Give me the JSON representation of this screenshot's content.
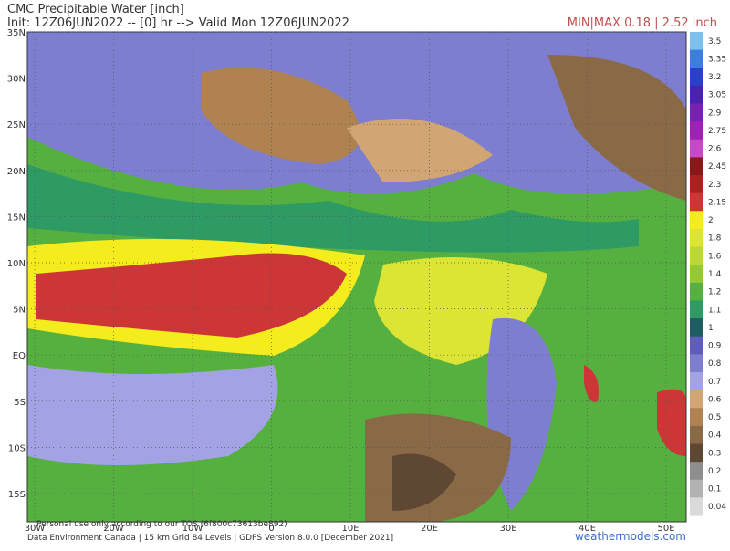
{
  "header": {
    "title": "CMC Precipitable Water [inch]",
    "init": "Init: 12Z06JUN2022 -- [0] hr --> Valid Mon 12Z06JUN2022",
    "minmax": "MIN|MAX 0.18 | 2.52 inch"
  },
  "colorbar": {
    "levels": [
      {
        "label": "3.5",
        "color": "#7cc0f0"
      },
      {
        "label": "3.35",
        "color": "#3c7ee0"
      },
      {
        "label": "3.2",
        "color": "#2a40c8"
      },
      {
        "label": "3.05",
        "color": "#4a22b0"
      },
      {
        "label": "2.9",
        "color": "#7820b8"
      },
      {
        "label": "2.75",
        "color": "#a020b8"
      },
      {
        "label": "2.6",
        "color": "#c848c8"
      },
      {
        "label": "2.45",
        "color": "#8a1818"
      },
      {
        "label": "2.3",
        "color": "#a82222"
      },
      {
        "label": "2.15",
        "color": "#cc3636"
      },
      {
        "label": "2",
        "color": "#f4ec1c"
      },
      {
        "label": "1.8",
        "color": "#dce434"
      },
      {
        "label": "1.6",
        "color": "#bcd836"
      },
      {
        "label": "1.4",
        "color": "#94c834"
      },
      {
        "label": "1.2",
        "color": "#56b040"
      },
      {
        "label": "1.1",
        "color": "#2e9a64"
      },
      {
        "label": "1",
        "color": "#1e5e62"
      },
      {
        "label": "0.9",
        "color": "#5e5cbc"
      },
      {
        "label": "0.8",
        "color": "#7e7ed0"
      },
      {
        "label": "0.7",
        "color": "#a2a2e4"
      },
      {
        "label": "0.6",
        "color": "#d2a674"
      },
      {
        "label": "0.5",
        "color": "#b08252"
      },
      {
        "label": "0.4",
        "color": "#8a6a46"
      },
      {
        "label": "0.3",
        "color": "#5e4834"
      },
      {
        "label": "0.2",
        "color": "#8e8e8e"
      },
      {
        "label": "0.1",
        "color": "#b2b2b2"
      },
      {
        "label": "0.04",
        "color": "#dadada"
      }
    ]
  },
  "map": {
    "lat_labels": [
      "35N",
      "30N",
      "25N",
      "20N",
      "15N",
      "10N",
      "5N",
      "EQ",
      "5S",
      "10S",
      "15S"
    ],
    "lon_labels": [
      "30W",
      "20W",
      "10W",
      "0",
      "10E",
      "20E",
      "30E",
      "40E",
      "50E"
    ]
  },
  "footer": {
    "tos": "Personal use only according to our TOS (6f800c73613be892)",
    "source": "Data Environment Canada | 15 km Grid 84 Levels | GDPS Version 8.0.0 [December 2021]",
    "brand": "weathermodels.com"
  }
}
